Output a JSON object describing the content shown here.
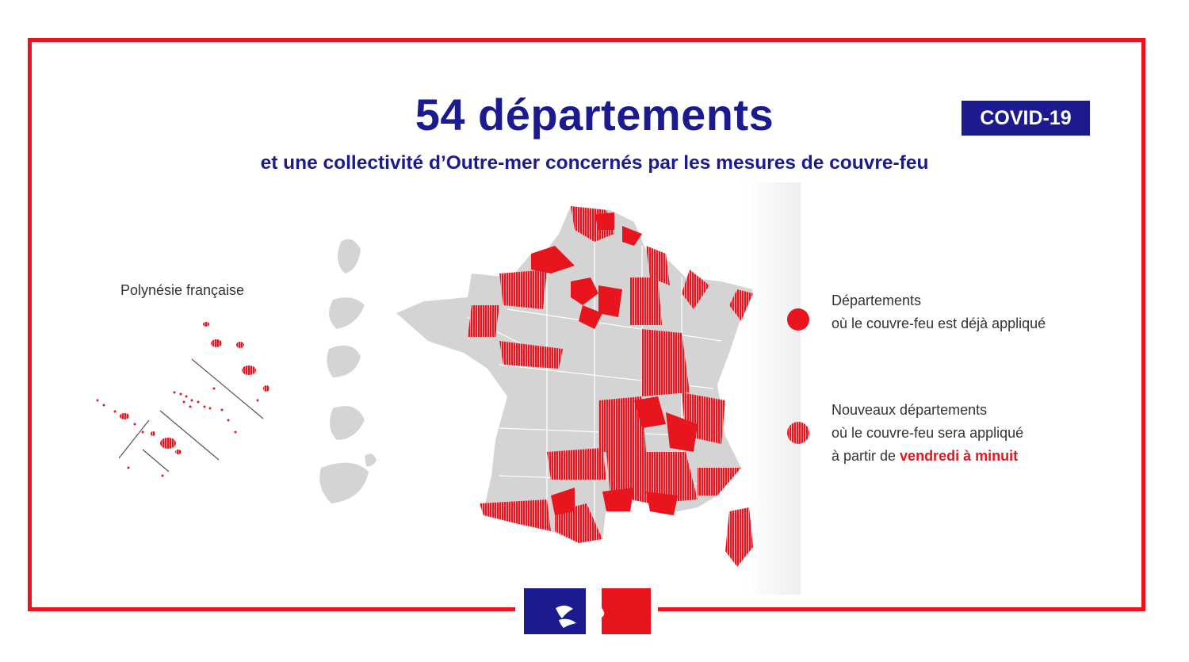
{
  "header": {
    "title": "54 départements",
    "subtitle": "et une collectivité d’Outre-mer concernés par les mesures de couvre-feu",
    "badge": "COVID-19"
  },
  "inset": {
    "label": "Polynésie française"
  },
  "legend": {
    "applied_line1": "Départements",
    "applied_line2": "où le couvre-feu est déjà appliqué",
    "new_line1": "Nouveaux départements",
    "new_line2": "où le couvre-feu sera appliqué",
    "new_line3_prefix": "à partir de ",
    "new_line3_emphasis": "vendredi à minuit"
  },
  "colors": {
    "brand_blue": "#1c1a8f",
    "alert_red": "#e8141e",
    "base_gray": "#d4d4d4"
  }
}
